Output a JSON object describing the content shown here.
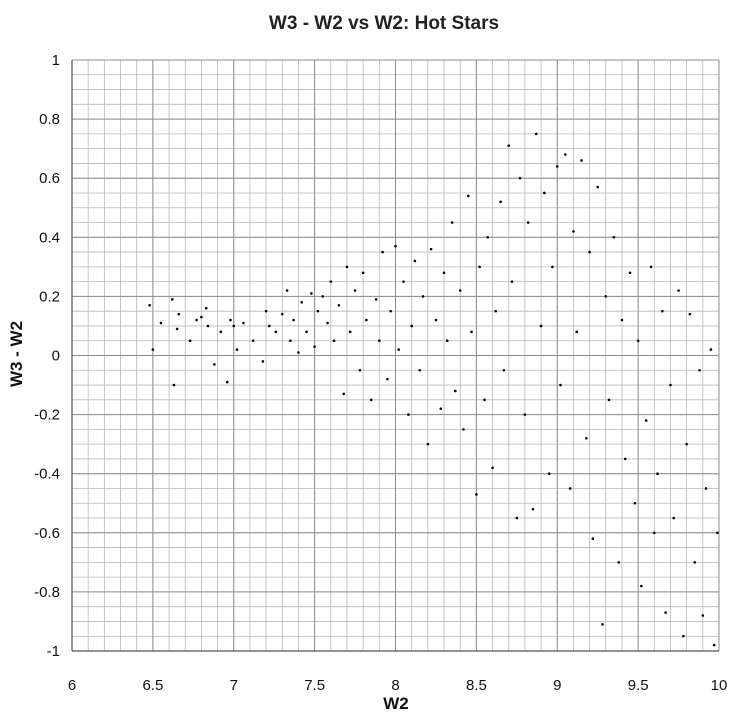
{
  "chart_data": {
    "type": "scatter",
    "title": "W3 - W2 vs W2: Hot Stars",
    "xlabel": "W2",
    "ylabel": "W3 - W2",
    "xlim": [
      6,
      10
    ],
    "ylim": [
      -1,
      1
    ],
    "x_ticks": [
      "6",
      "6.5",
      "7",
      "7.5",
      "8",
      "8.5",
      "9",
      "9.5",
      "10"
    ],
    "y_ticks": [
      "1",
      "0.8",
      "0.6",
      "0.4",
      "0.2",
      "0",
      "-0.2",
      "-0.4",
      "-0.6",
      "-0.8",
      "-1"
    ],
    "grid": true,
    "minor_gridlines": true,
    "legend": "none",
    "marker_color": "#000000",
    "grid_color": "#b8b8b8",
    "series": [
      {
        "points": [
          [
            6.48,
            0.17
          ],
          [
            6.5,
            0.02
          ],
          [
            6.55,
            0.11
          ],
          [
            6.62,
            0.19
          ],
          [
            6.63,
            -0.1
          ],
          [
            6.65,
            0.09
          ],
          [
            6.66,
            0.14
          ],
          [
            6.73,
            0.05
          ],
          [
            6.77,
            0.12
          ],
          [
            6.8,
            0.13
          ],
          [
            6.83,
            0.16
          ],
          [
            6.84,
            0.1
          ],
          [
            6.88,
            -0.03
          ],
          [
            6.92,
            0.08
          ],
          [
            6.96,
            -0.09
          ],
          [
            6.98,
            0.12
          ],
          [
            7.0,
            0.1
          ],
          [
            7.02,
            0.02
          ],
          [
            7.06,
            0.11
          ],
          [
            7.12,
            0.05
          ],
          [
            7.18,
            -0.02
          ],
          [
            7.2,
            0.15
          ],
          [
            7.22,
            0.1
          ],
          [
            7.26,
            0.08
          ],
          [
            7.3,
            0.14
          ],
          [
            7.33,
            0.22
          ],
          [
            7.35,
            0.05
          ],
          [
            7.37,
            0.12
          ],
          [
            7.4,
            0.01
          ],
          [
            7.42,
            0.18
          ],
          [
            7.45,
            0.08
          ],
          [
            7.48,
            0.21
          ],
          [
            7.5,
            0.03
          ],
          [
            7.52,
            0.15
          ],
          [
            7.55,
            0.2
          ],
          [
            7.58,
            0.11
          ],
          [
            7.6,
            0.25
          ],
          [
            7.62,
            0.05
          ],
          [
            7.65,
            0.17
          ],
          [
            7.68,
            -0.13
          ],
          [
            7.7,
            0.3
          ],
          [
            7.72,
            0.08
          ],
          [
            7.75,
            0.22
          ],
          [
            7.78,
            -0.05
          ],
          [
            7.8,
            0.28
          ],
          [
            7.82,
            0.12
          ],
          [
            7.85,
            -0.15
          ],
          [
            7.88,
            0.19
          ],
          [
            7.9,
            0.05
          ],
          [
            7.92,
            0.35
          ],
          [
            7.95,
            -0.08
          ],
          [
            7.97,
            0.15
          ],
          [
            8.0,
            0.37
          ],
          [
            8.02,
            0.02
          ],
          [
            8.05,
            0.25
          ],
          [
            8.08,
            -0.2
          ],
          [
            8.1,
            0.1
          ],
          [
            8.12,
            0.32
          ],
          [
            8.15,
            -0.05
          ],
          [
            8.17,
            0.2
          ],
          [
            8.2,
            -0.3
          ],
          [
            8.22,
            0.36
          ],
          [
            8.25,
            0.12
          ],
          [
            8.28,
            -0.18
          ],
          [
            8.3,
            0.28
          ],
          [
            8.32,
            0.05
          ],
          [
            8.35,
            0.45
          ],
          [
            8.37,
            -0.12
          ],
          [
            8.4,
            0.22
          ],
          [
            8.42,
            -0.25
          ],
          [
            8.45,
            0.54
          ],
          [
            8.47,
            0.08
          ],
          [
            8.5,
            -0.47
          ],
          [
            8.52,
            0.3
          ],
          [
            8.55,
            -0.15
          ],
          [
            8.57,
            0.4
          ],
          [
            8.6,
            -0.38
          ],
          [
            8.62,
            0.15
          ],
          [
            8.65,
            0.52
          ],
          [
            8.67,
            -0.05
          ],
          [
            8.7,
            0.71
          ],
          [
            8.72,
            0.25
          ],
          [
            8.75,
            -0.55
          ],
          [
            8.77,
            0.6
          ],
          [
            8.8,
            -0.2
          ],
          [
            8.82,
            0.45
          ],
          [
            8.85,
            -0.52
          ],
          [
            8.87,
            0.75
          ],
          [
            8.9,
            0.1
          ],
          [
            8.92,
            0.55
          ],
          [
            8.95,
            -0.4
          ],
          [
            8.97,
            0.3
          ],
          [
            9.0,
            0.64
          ],
          [
            9.02,
            -0.1
          ],
          [
            9.05,
            0.68
          ],
          [
            9.08,
            -0.45
          ],
          [
            9.1,
            0.42
          ],
          [
            9.12,
            0.08
          ],
          [
            9.15,
            0.66
          ],
          [
            9.18,
            -0.28
          ],
          [
            9.2,
            0.35
          ],
          [
            9.22,
            -0.62
          ],
          [
            9.25,
            0.57
          ],
          [
            9.28,
            -0.91
          ],
          [
            9.3,
            0.2
          ],
          [
            9.32,
            -0.15
          ],
          [
            9.35,
            0.4
          ],
          [
            9.38,
            -0.7
          ],
          [
            9.4,
            0.12
          ],
          [
            9.42,
            -0.35
          ],
          [
            9.45,
            0.28
          ],
          [
            9.48,
            -0.5
          ],
          [
            9.5,
            0.05
          ],
          [
            9.52,
            -0.78
          ],
          [
            9.55,
            -0.22
          ],
          [
            9.58,
            0.3
          ],
          [
            9.6,
            -0.6
          ],
          [
            9.62,
            -0.4
          ],
          [
            9.65,
            0.15
          ],
          [
            9.67,
            -0.87
          ],
          [
            9.7,
            -0.1
          ],
          [
            9.72,
            -0.55
          ],
          [
            9.75,
            0.22
          ],
          [
            9.78,
            -0.95
          ],
          [
            9.8,
            -0.3
          ],
          [
            9.82,
            0.14
          ],
          [
            9.85,
            -0.7
          ],
          [
            9.88,
            -0.05
          ],
          [
            9.9,
            -0.88
          ],
          [
            9.92,
            -0.45
          ],
          [
            9.95,
            0.02
          ],
          [
            9.97,
            -0.98
          ],
          [
            9.99,
            -0.6
          ]
        ]
      }
    ]
  }
}
